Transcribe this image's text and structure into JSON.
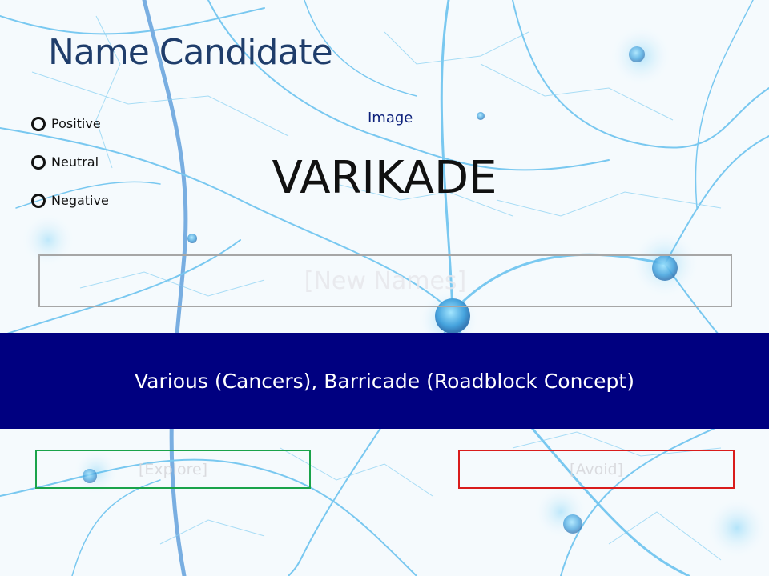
{
  "slide": {
    "title": "Name Candidate",
    "rating_options": [
      "Positive",
      "Neutral",
      "Negative"
    ],
    "image_label": "Image",
    "candidate_name": "VARIKADE",
    "new_names_placeholder": "[New Names]",
    "rationale": "Various (Cancers), Barricade (Roadblock Concept)",
    "explore_label": "[Explore]",
    "avoid_label": "[Avoid]"
  },
  "colors": {
    "title": "#1f3d6b",
    "banner": "#000080",
    "explore_border": "#1aa34a",
    "avoid_border": "#d91c1c",
    "neuron": "#2aa8e8"
  },
  "background": {
    "description_icon": "neuron-network-background"
  }
}
